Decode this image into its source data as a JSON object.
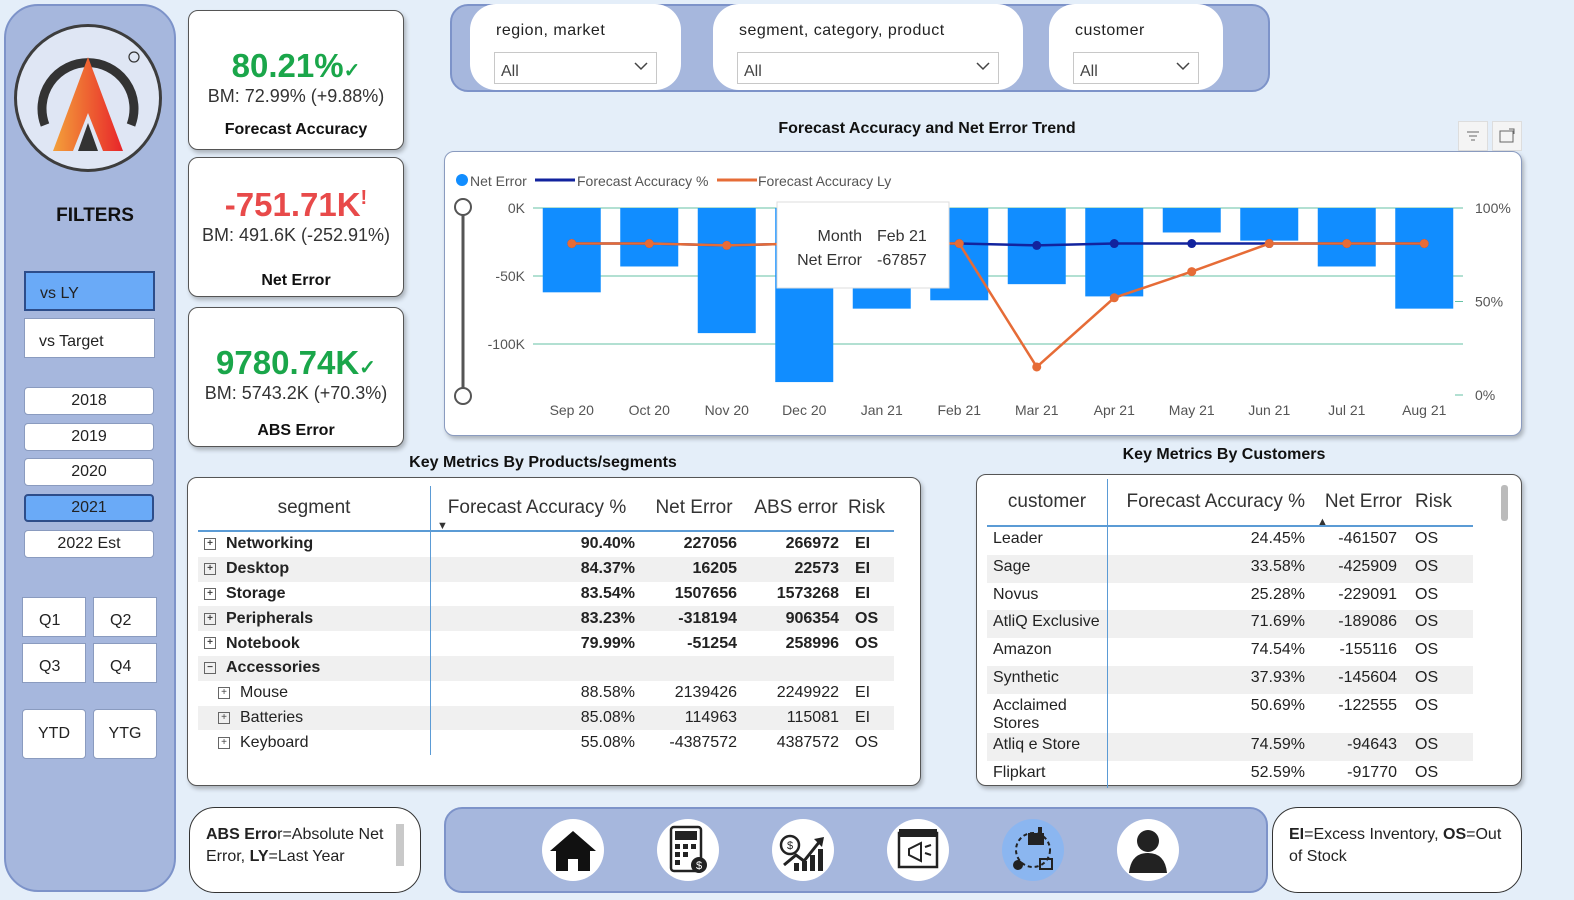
{
  "sidebar": {
    "filters_title": "FILTERS",
    "compare": [
      {
        "label": "vs LY",
        "selected": true
      },
      {
        "label": "vs Target",
        "selected": false
      }
    ],
    "years": [
      {
        "label": "2018",
        "selected": false
      },
      {
        "label": "2019",
        "selected": false
      },
      {
        "label": "2020",
        "selected": false
      },
      {
        "label": "2021",
        "selected": true
      },
      {
        "label": "2022 Est",
        "selected": false
      }
    ],
    "quarters": [
      "Q1",
      "Q2",
      "Q3",
      "Q4"
    ],
    "periods": [
      "YTD",
      "YTG"
    ]
  },
  "kpis": {
    "forecast_accuracy": {
      "value": "80.21%",
      "mark": "✓",
      "bm": "BM: 72.99% (+9.88%)",
      "label": "Forecast Accuracy"
    },
    "net_error": {
      "value": "-751.71K",
      "mark": "!",
      "bm": "BM: 491.6K (-252.91%)",
      "label": "Net Error"
    },
    "abs_error": {
      "value": "9780.74K",
      "mark": "✓",
      "bm": "BM: 5743.2K (+70.3%)",
      "label": "ABS Error"
    }
  },
  "slicers": [
    {
      "title": "region, market",
      "value": "All"
    },
    {
      "title": "segment, category, product",
      "value": "All"
    },
    {
      "title": "customer",
      "value": "All"
    }
  ],
  "trend": {
    "title": "Forecast Accuracy and Net Error Trend",
    "tooltip": {
      "month_label": "Month",
      "month_value": "Feb 21",
      "error_label": "Net Error",
      "error_value": "-67857"
    }
  },
  "chart_data": {
    "type": "bar",
    "categories": [
      "Sep 20",
      "Oct 20",
      "Nov 20",
      "Dec 20",
      "Jan 21",
      "Feb 21",
      "Mar 21",
      "Apr 21",
      "May 21",
      "Jun 21",
      "Jul 21",
      "Aug 21"
    ],
    "series": [
      {
        "name": "Net Error",
        "type": "bar",
        "axis": "left",
        "color": "#118dff",
        "values": [
          -62000,
          -43000,
          -92000,
          -128000,
          -74000,
          -67857,
          -56000,
          -65000,
          -18000,
          -24000,
          -43000,
          -74000
        ]
      },
      {
        "name": "Forecast Accuracy %",
        "type": "line",
        "axis": "right",
        "color": "#12239e",
        "values": [
          81,
          81,
          80,
          81,
          81,
          81,
          80,
          81,
          81,
          81,
          81,
          81
        ]
      },
      {
        "name": "Forecast Accuracy Ly",
        "type": "line",
        "axis": "right",
        "color": "#e66c37",
        "values": [
          81,
          81,
          80,
          81,
          81,
          81,
          15,
          52,
          66,
          81,
          81,
          81
        ]
      }
    ],
    "y_left": {
      "ticks": [
        "0K",
        "-50K",
        "-100K"
      ],
      "range": [
        -135000,
        0
      ]
    },
    "y_right": {
      "ticks": [
        "100%",
        "50%",
        "0%"
      ],
      "range": [
        0,
        100
      ]
    },
    "legend": "top-left"
  },
  "products_table": {
    "title": "Key Metrics By Products/segments",
    "columns": [
      "segment",
      "Forecast Accuracy %",
      "Net Error",
      "ABS error",
      "Risk"
    ],
    "rows": [
      {
        "name": "Networking",
        "fa": "90.40%",
        "ne": "227056",
        "abs": "266972",
        "risk": "EI",
        "bold": true,
        "icon": "+"
      },
      {
        "name": "Desktop",
        "fa": "84.37%",
        "ne": "16205",
        "abs": "22573",
        "risk": "EI",
        "bold": true,
        "icon": "+"
      },
      {
        "name": "Storage",
        "fa": "83.54%",
        "ne": "1507656",
        "abs": "1573268",
        "risk": "EI",
        "bold": true,
        "icon": "+"
      },
      {
        "name": "Peripherals",
        "fa": "83.23%",
        "ne": "-318194",
        "abs": "906354",
        "risk": "OS",
        "bold": true,
        "icon": "+"
      },
      {
        "name": "Notebook",
        "fa": "79.99%",
        "ne": "-51254",
        "abs": "258996",
        "risk": "OS",
        "bold": true,
        "icon": "+"
      },
      {
        "name": "Accessories",
        "fa": "",
        "ne": "",
        "abs": "",
        "risk": "",
        "bold": true,
        "icon": "−"
      },
      {
        "name": "Mouse",
        "fa": "88.58%",
        "ne": "2139426",
        "abs": "2249922",
        "risk": "EI",
        "bold": false,
        "icon": "+"
      },
      {
        "name": "Batteries",
        "fa": "85.08%",
        "ne": "114963",
        "abs": "115081",
        "risk": "EI",
        "bold": false,
        "icon": "+"
      },
      {
        "name": "Keyboard",
        "fa": "55.08%",
        "ne": "-4387572",
        "abs": "4387572",
        "risk": "OS",
        "bold": false,
        "icon": "+"
      }
    ]
  },
  "customers_table": {
    "title": "Key Metrics By Customers",
    "columns": [
      "customer",
      "Forecast Accuracy %",
      "Net Error",
      "Risk"
    ],
    "rows": [
      {
        "name": "Leader",
        "fa": "24.45%",
        "ne": "-461507",
        "risk": "OS"
      },
      {
        "name": "Sage",
        "fa": "33.58%",
        "ne": "-425909",
        "risk": "OS"
      },
      {
        "name": "Novus",
        "fa": "25.28%",
        "ne": "-229091",
        "risk": "OS"
      },
      {
        "name": "AtliQ Exclusive",
        "fa": "71.69%",
        "ne": "-189086",
        "risk": "OS"
      },
      {
        "name": "Amazon",
        "fa": "74.54%",
        "ne": "-155116",
        "risk": "OS"
      },
      {
        "name": "Synthetic",
        "fa": "37.93%",
        "ne": "-145604",
        "risk": "OS"
      },
      {
        "name": "Acclaimed Stores",
        "fa": "50.69%",
        "ne": "-122555",
        "risk": "OS"
      },
      {
        "name": "Atliq e Store",
        "fa": "74.59%",
        "ne": "-94643",
        "risk": "OS"
      },
      {
        "name": "Flipkart",
        "fa": "52.59%",
        "ne": "-91770",
        "risk": "OS"
      }
    ]
  },
  "notes": {
    "left": {
      "b1": "ABS Erro",
      "t1": "r=Absolute Net Error, ",
      "b2": "LY",
      "t2": "=Last Year"
    },
    "right": {
      "b1": "EI",
      "t1": "=Excess Inventory, ",
      "b2": "OS",
      "t2": "=Out of Stock"
    }
  },
  "nav_icons": [
    "home-icon",
    "calculator-icon",
    "finance-chart-icon",
    "marketing-icon",
    "supply-chain-icon",
    "user-icon"
  ]
}
